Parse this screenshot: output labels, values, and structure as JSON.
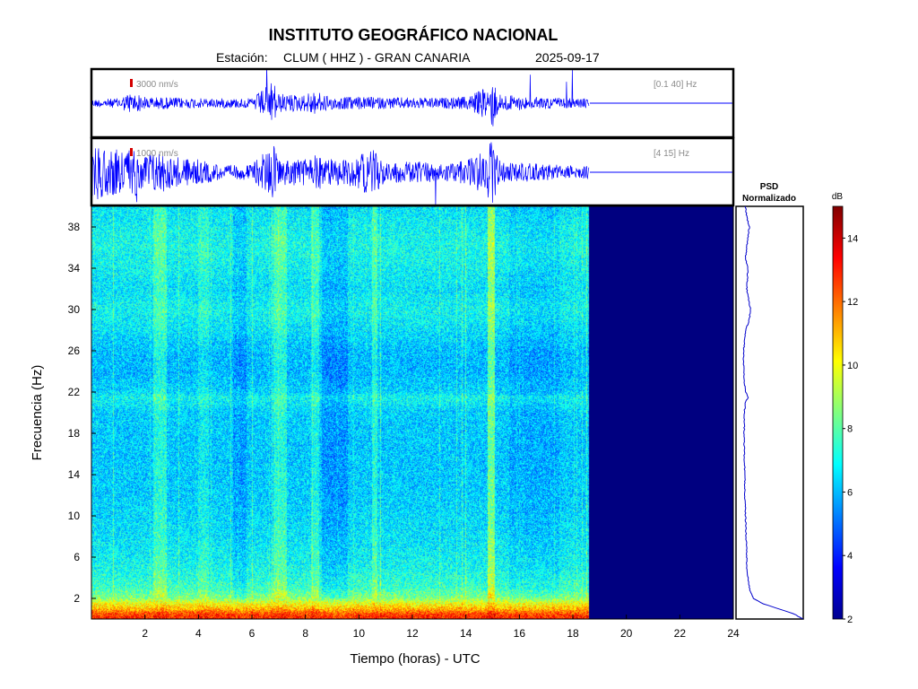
{
  "header": {
    "title": "INSTITUTO GEOGRÁFICO NACIONAL",
    "station_label": "Estación:",
    "station": "CLUM ( HHZ ) - GRAN CANARIA",
    "date": "2025-09-17"
  },
  "trace_panels": [
    {
      "scale_label": "3000 nm/s",
      "band_label": "[0.1 40] Hz"
    },
    {
      "scale_label": "1000 nm/s",
      "band_label": "[4 15] Hz"
    }
  ],
  "psd_panel": {
    "title_line1": "PSD",
    "title_line2": "Normalizado"
  },
  "colorbar": {
    "unit": "dB",
    "ticks": [
      "2",
      "4",
      "6",
      "8",
      "10",
      "12",
      "14"
    ],
    "range": [
      2,
      15
    ]
  },
  "axes": {
    "xlabel": "Tiempo (horas) - UTC",
    "ylabel": "Frecuencia  (Hz)"
  },
  "colors": {
    "trace": "#0000ff",
    "no_data": "#00008f",
    "scale_marker": "#d40000"
  },
  "chart_data": [
    {
      "type": "line",
      "panel": "trace-broadband",
      "xlim": [
        0,
        24
      ],
      "data_end_hour": 18.6,
      "envelope": {
        "x": [
          0,
          1,
          1.5,
          2,
          3,
          4,
          5,
          6,
          6.8,
          7,
          8,
          8.2,
          9,
          10,
          11,
          12,
          13,
          14,
          14.9,
          15,
          15.2,
          16,
          17,
          18,
          18.6
        ],
        "amplitude": [
          0.12,
          0.15,
          0.35,
          0.2,
          0.18,
          0.15,
          0.15,
          0.15,
          0.7,
          0.3,
          0.25,
          0.4,
          0.2,
          0.2,
          0.18,
          0.18,
          0.16,
          0.2,
          0.55,
          0.85,
          0.3,
          0.22,
          0.18,
          0.15,
          0.15
        ]
      }
    },
    {
      "type": "line",
      "panel": "trace-filtered",
      "xlim": [
        0,
        24
      ],
      "data_end_hour": 18.6,
      "envelope": {
        "x": [
          0,
          1,
          1.5,
          2,
          2.5,
          3,
          4,
          5,
          6,
          6.8,
          7,
          8,
          8.2,
          9,
          10,
          10.5,
          11,
          12,
          13,
          14,
          14.9,
          15,
          15.3,
          16,
          17,
          18,
          18.6
        ],
        "amplitude": [
          0.9,
          0.7,
          0.8,
          0.6,
          0.7,
          0.5,
          0.4,
          0.2,
          0.25,
          0.9,
          0.4,
          0.45,
          0.6,
          0.4,
          0.5,
          0.8,
          0.3,
          0.35,
          0.3,
          0.35,
          0.9,
          1.0,
          0.3,
          0.3,
          0.25,
          0.2,
          0.2
        ]
      }
    },
    {
      "type": "heatmap",
      "panel": "spectrogram",
      "xlabel": "Tiempo (horas) - UTC",
      "ylabel": "Frecuencia  (Hz)",
      "xlim": [
        0,
        24
      ],
      "ylim": [
        0,
        40
      ],
      "xticks": [
        2,
        4,
        6,
        8,
        10,
        12,
        14,
        16,
        18,
        20,
        22,
        24
      ],
      "yticks": [
        2,
        6,
        10,
        14,
        18,
        22,
        26,
        30,
        34,
        38
      ],
      "data_end_hour": 18.6,
      "db_range": [
        2,
        15
      ],
      "background_db_by_frequency": {
        "freq": [
          0,
          0.5,
          1,
          1.5,
          2,
          3,
          5,
          8,
          12,
          16,
          20,
          21.5,
          22,
          24,
          26,
          28,
          30,
          32,
          34,
          36,
          38,
          40
        ],
        "db": [
          13,
          12.5,
          11,
          10,
          8.6,
          7.6,
          7.0,
          6.6,
          6.3,
          6.2,
          6.3,
          7.0,
          6.4,
          6.0,
          6.1,
          6.6,
          7.0,
          6.6,
          6.9,
          7.1,
          6.9,
          6.6
        ]
      },
      "time_bands": [
        {
          "t_start": 2.3,
          "t_end": 2.8,
          "db_offset": 1.0
        },
        {
          "t_start": 4.0,
          "t_end": 4.4,
          "db_offset": 0.6
        },
        {
          "t_start": 5.3,
          "t_end": 5.8,
          "db_offset": -0.6
        },
        {
          "t_start": 6.8,
          "t_end": 7.3,
          "db_offset": 1.0
        },
        {
          "t_start": 8.2,
          "t_end": 8.5,
          "db_offset": 0.8
        },
        {
          "t_start": 8.6,
          "t_end": 9.6,
          "db_offset": -0.7
        },
        {
          "t_start": 10.5,
          "t_end": 10.7,
          "db_offset": 1.0
        },
        {
          "t_start": 14.8,
          "t_end": 15.1,
          "db_offset": 2.0
        },
        {
          "t_start": 15.6,
          "t_end": 17.5,
          "db_offset": -0.4
        }
      ]
    },
    {
      "type": "line",
      "panel": "psd-normalized",
      "orientation": "vertical",
      "freq": [
        0,
        0.5,
        1,
        1.5,
        2,
        3,
        4,
        5,
        6,
        8,
        10,
        12,
        14,
        16,
        18,
        20,
        21,
        21.5,
        22,
        23,
        24,
        26,
        28,
        29,
        30,
        32,
        34,
        35,
        36,
        37,
        38,
        39,
        40
      ],
      "value": [
        1.0,
        0.85,
        0.6,
        0.35,
        0.2,
        0.14,
        0.12,
        0.1,
        0.1,
        0.09,
        0.08,
        0.07,
        0.07,
        0.06,
        0.06,
        0.06,
        0.08,
        0.12,
        0.08,
        0.06,
        0.05,
        0.05,
        0.08,
        0.14,
        0.16,
        0.1,
        0.12,
        0.08,
        0.1,
        0.12,
        0.14,
        0.1,
        0.08
      ]
    }
  ]
}
